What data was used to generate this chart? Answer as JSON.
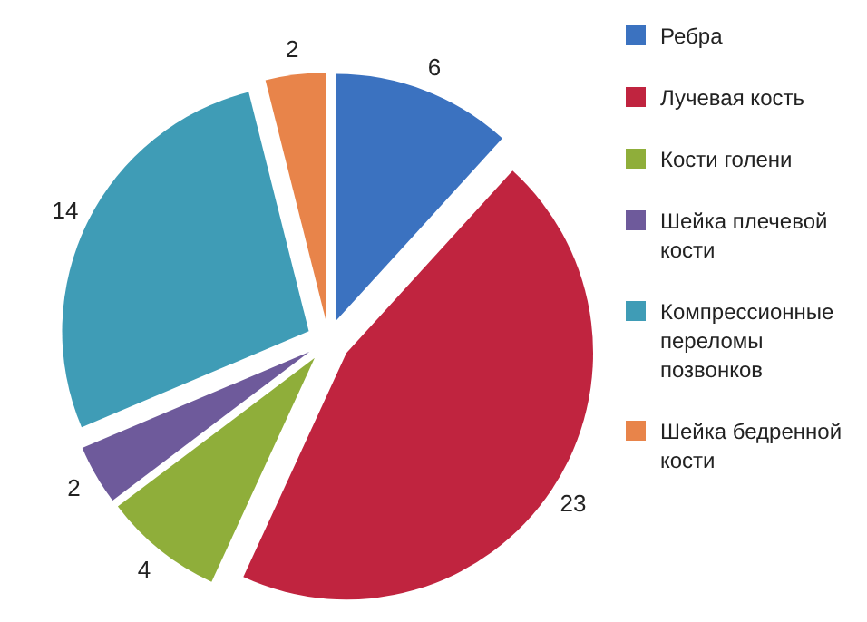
{
  "chart_data": {
    "type": "pie",
    "categories": [
      "Ребра",
      "Лучевая кость",
      "Кости голени",
      "Шейка плечевой кости",
      "Компрессионные переломы позвонков",
      "Шейка бедренной кости"
    ],
    "values": [
      6,
      23,
      4,
      2,
      14,
      2
    ],
    "colors": [
      "#3b72c0",
      "#c0243f",
      "#8fae3a",
      "#6e5a9b",
      "#3f9cb6",
      "#e8844a"
    ],
    "data_labels": true,
    "legend": "top right"
  }
}
